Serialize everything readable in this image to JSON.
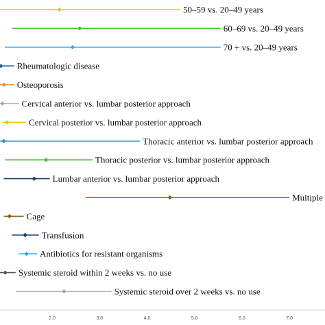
{
  "chart_data": {
    "type": "forest",
    "title": "",
    "xlabel": "",
    "ylabel": "",
    "x_ticks": [
      2.0,
      3.0,
      4.0,
      5.0,
      6.0,
      7.0
    ],
    "x_tick_labels": [
      "2.0",
      "3.0",
      "4.0",
      "5.0",
      "6.0",
      "7.0"
    ],
    "xlim": [
      0.9,
      7.75
    ],
    "grid": false,
    "legend": "none",
    "rows": [
      {
        "label": "50–59 vs. 20–49 years",
        "estimate": 2.15,
        "lower": 0.9,
        "upper": 4.7,
        "color": "#f2c200"
      },
      {
        "label": "60–69 vs. 20–49 years",
        "estimate": 2.58,
        "lower": 1.15,
        "upper": 5.55,
        "color": "#4cbb3a"
      },
      {
        "label": "70 + vs. 20–49 years",
        "estimate": 2.43,
        "lower": 1.0,
        "upper": 5.55,
        "color": "#3ea6e0"
      },
      {
        "label": "Rheumatologic disease",
        "estimate": 0.92,
        "lower": 0.9,
        "upper": 1.2,
        "color": "#1f5fa8"
      },
      {
        "label": "Osteoporosis",
        "estimate": 0.98,
        "lower": 0.9,
        "upper": 1.2,
        "color": "#f08a2c"
      },
      {
        "label": "Cervical anterior vs. lumbar posterior approach",
        "estimate": 0.95,
        "lower": 0.9,
        "upper": 1.3,
        "color": "#a9a9a9"
      },
      {
        "label": "Cervical posterior vs. lumbar posterior approach",
        "estimate": 1.05,
        "lower": 0.95,
        "upper": 1.45,
        "color": "#f2c200"
      },
      {
        "label": "Thoracic anterior vs. lumbar posterior approach",
        "estimate": 0.98,
        "lower": 0.9,
        "upper": 3.85,
        "color": "#2e8fc9"
      },
      {
        "label": "Thoracic posterior vs. lumbar posterior approach",
        "estimate": 1.87,
        "lower": 1.0,
        "upper": 2.85,
        "color": "#4cbb3a"
      },
      {
        "label": "Lumbar anterior vs. lumbar posterior approach",
        "estimate": 1.62,
        "lower": 0.98,
        "upper": 1.95,
        "color": "#0f3f6e"
      },
      {
        "label": "Multiple vs. lumbar posterior approach",
        "estimate": 4.48,
        "lower": 2.7,
        "upper": 7.0,
        "color": "#b5491c"
      },
      {
        "label": "Cage",
        "estimate": 1.1,
        "lower": 0.98,
        "upper": 1.4,
        "color": "#8b5a1c"
      },
      {
        "label": "Transfusion",
        "estimate": 1.43,
        "lower": 1.15,
        "upper": 1.72,
        "color": "#0f3f6e"
      },
      {
        "label": "Antibiotics for resistant organisms",
        "estimate": 1.46,
        "lower": 1.3,
        "upper": 1.68,
        "color": "#2aa8ef"
      },
      {
        "label": "Systemic steroid within 2 weeks vs. no use",
        "estimate": 1.01,
        "lower": 0.9,
        "upper": 1.23,
        "color": "#555555"
      },
      {
        "label": "Systemic steroid over 2 weeks vs. no use",
        "estimate": 2.25,
        "lower": 1.23,
        "upper": 3.25,
        "color": "#a9a9a9"
      }
    ]
  }
}
